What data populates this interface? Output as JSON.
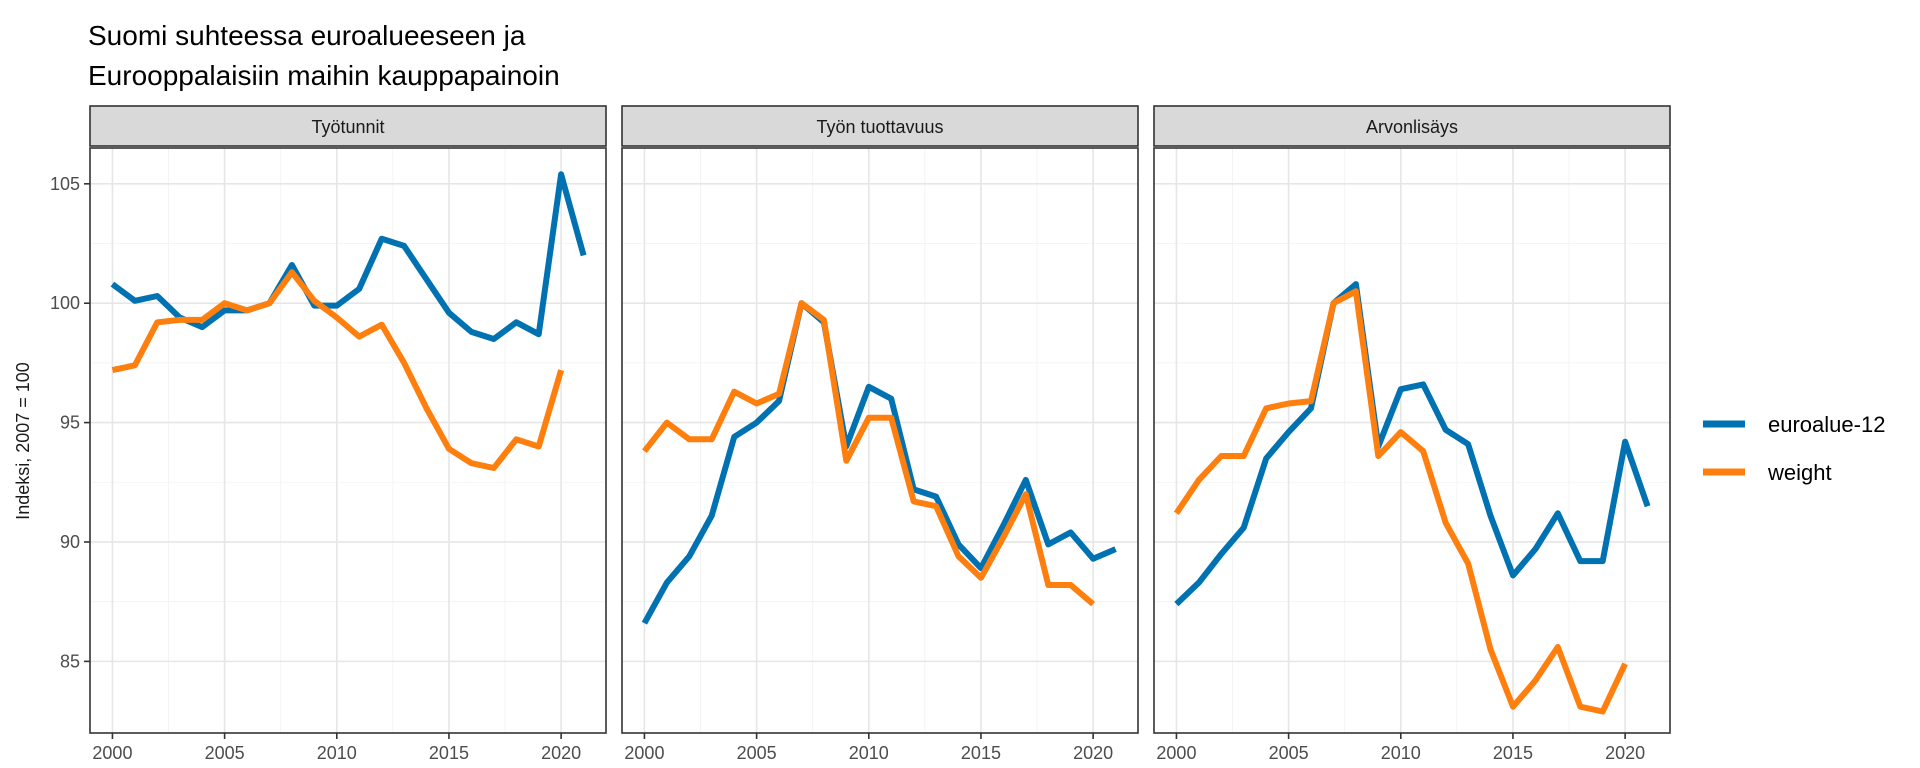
{
  "chart_data": {
    "type": "line",
    "title_line1": "Suomi suhteessa euroalueeseen ja",
    "title_line2": "Eurooppalaisiin maihin kauppapainoin",
    "xlabel": "",
    "ylabel": "Indeksi, 2007 = 100",
    "xlim": [
      1999,
      2022
    ],
    "ylim": [
      82,
      106.5
    ],
    "x_ticks": [
      2000,
      2005,
      2010,
      2015,
      2020
    ],
    "y_ticks": [
      85,
      90,
      95,
      100,
      105
    ],
    "grid": true,
    "legend_position": "right",
    "colors": {
      "euroalue-12": "#0072B2",
      "weight": "#FF7F0E"
    },
    "legend": [
      "euroalue-12",
      "weight"
    ],
    "facets": [
      {
        "label": "Työtunnit",
        "series": [
          {
            "name": "euroalue-12",
            "x": [
              2000,
              2001,
              2002,
              2003,
              2004,
              2005,
              2006,
              2007,
              2008,
              2009,
              2010,
              2011,
              2012,
              2013,
              2014,
              2015,
              2016,
              2017,
              2018,
              2019,
              2020,
              2021
            ],
            "values": [
              100.8,
              100.1,
              100.3,
              99.4,
              99.0,
              99.7,
              99.7,
              100.0,
              101.6,
              99.9,
              99.9,
              100.6,
              102.7,
              102.4,
              101.0,
              99.6,
              98.8,
              98.5,
              99.2,
              98.7,
              105.4,
              102.0
            ]
          },
          {
            "name": "weight",
            "x": [
              2000,
              2001,
              2002,
              2003,
              2004,
              2005,
              2006,
              2007,
              2008,
              2009,
              2010,
              2011,
              2012,
              2013,
              2014,
              2015,
              2016,
              2017,
              2018,
              2019,
              2020
            ],
            "values": [
              97.2,
              97.4,
              99.2,
              99.3,
              99.3,
              100.0,
              99.7,
              100.0,
              101.3,
              100.1,
              99.4,
              98.6,
              99.1,
              97.5,
              95.6,
              93.9,
              93.3,
              93.1,
              94.3,
              94.0,
              97.2
            ]
          }
        ]
      },
      {
        "label": "Työn tuottavuus",
        "series": [
          {
            "name": "euroalue-12",
            "x": [
              2000,
              2001,
              2002,
              2003,
              2004,
              2005,
              2006,
              2007,
              2008,
              2009,
              2010,
              2011,
              2012,
              2013,
              2014,
              2015,
              2016,
              2017,
              2018,
              2019,
              2020,
              2021
            ],
            "values": [
              86.6,
              88.3,
              89.4,
              91.1,
              94.4,
              95.0,
              95.9,
              100.0,
              99.2,
              94.0,
              96.5,
              96.0,
              92.2,
              91.9,
              89.9,
              88.9,
              90.7,
              92.6,
              89.9,
              90.4,
              89.3,
              89.7
            ]
          },
          {
            "name": "weight",
            "x": [
              2000,
              2001,
              2002,
              2003,
              2004,
              2005,
              2006,
              2007,
              2008,
              2009,
              2010,
              2011,
              2012,
              2013,
              2014,
              2015,
              2016,
              2017,
              2018,
              2019,
              2020
            ],
            "values": [
              93.8,
              95.0,
              94.3,
              94.3,
              96.3,
              95.8,
              96.2,
              100.0,
              99.3,
              93.4,
              95.2,
              95.2,
              91.7,
              91.5,
              89.4,
              88.5,
              90.2,
              92.0,
              88.2,
              88.2,
              87.4
            ]
          }
        ]
      },
      {
        "label": "Arvonlisäys",
        "series": [
          {
            "name": "euroalue-12",
            "x": [
              2000,
              2001,
              2002,
              2003,
              2004,
              2005,
              2006,
              2007,
              2008,
              2009,
              2010,
              2011,
              2012,
              2013,
              2014,
              2015,
              2016,
              2017,
              2018,
              2019,
              2020,
              2021
            ],
            "values": [
              87.4,
              88.3,
              89.5,
              90.6,
              93.5,
              94.6,
              95.6,
              100.0,
              100.8,
              94.0,
              96.4,
              96.6,
              94.7,
              94.1,
              91.1,
              88.6,
              89.7,
              91.2,
              89.2,
              89.2,
              94.2,
              91.5
            ]
          },
          {
            "name": "weight",
            "x": [
              2000,
              2001,
              2002,
              2003,
              2004,
              2005,
              2006,
              2007,
              2008,
              2009,
              2010,
              2011,
              2012,
              2013,
              2014,
              2015,
              2016,
              2017,
              2018,
              2019,
              2020
            ],
            "values": [
              91.2,
              92.6,
              93.6,
              93.6,
              95.6,
              95.8,
              95.9,
              100.0,
              100.5,
              93.6,
              94.6,
              93.8,
              90.8,
              89.1,
              85.5,
              83.1,
              84.2,
              85.6,
              83.1,
              82.9,
              84.9
            ]
          }
        ]
      }
    ]
  }
}
